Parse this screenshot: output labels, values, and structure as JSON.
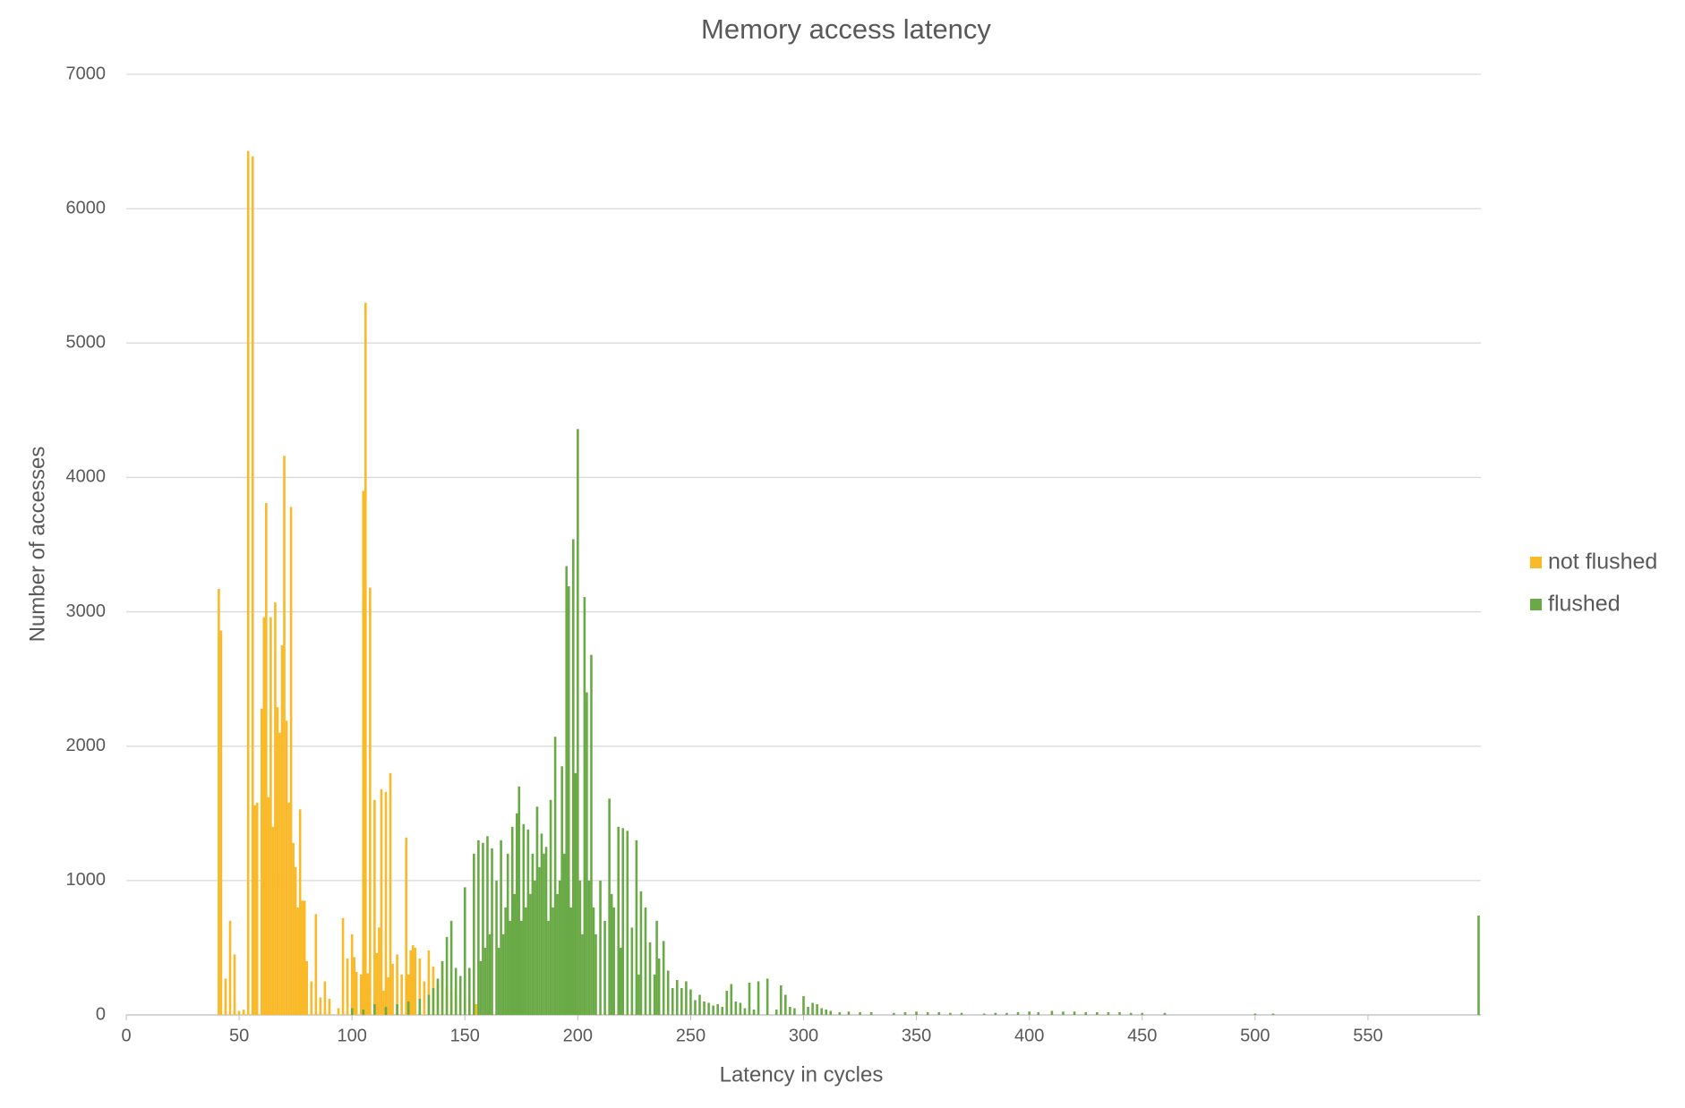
{
  "chart_data": {
    "type": "bar",
    "title": "Memory access latency",
    "x_label": "Latency in cycles",
    "y_label": "Number of accesses",
    "xlim": [
      0,
      600
    ],
    "xticks": [
      0,
      50,
      100,
      150,
      200,
      250,
      300,
      350,
      400,
      450,
      500,
      550
    ],
    "ylim": [
      0,
      7000
    ],
    "yticks": [
      0,
      1000,
      2000,
      3000,
      4000,
      5000,
      6000,
      7000
    ],
    "grid": true,
    "legend": "right",
    "series": [
      {
        "name": "not flushed",
        "color": "#f9b928",
        "x": [
          41,
          42,
          44,
          46,
          48,
          50,
          52,
          54,
          56,
          57,
          58,
          60,
          61,
          62,
          63,
          64,
          65,
          66,
          67,
          68,
          69,
          70,
          71,
          72,
          73,
          74,
          75,
          76,
          77,
          78,
          79,
          80,
          82,
          84,
          86,
          88,
          90,
          94,
          96,
          98,
          100,
          101,
          102,
          104,
          105,
          106,
          107,
          108,
          110,
          111,
          112,
          113,
          114,
          115,
          116,
          117,
          118,
          120,
          122,
          124,
          125,
          126,
          127,
          128,
          130,
          132,
          134,
          136,
          138,
          140,
          142,
          144,
          146,
          148,
          150,
          152,
          155,
          160
        ],
        "values": [
          3170,
          2860,
          270,
          700,
          450,
          30,
          40,
          6430,
          6390,
          1560,
          1580,
          2280,
          2960,
          3810,
          1620,
          2960,
          1400,
          3070,
          2290,
          2100,
          2750,
          4160,
          2190,
          1580,
          3780,
          1280,
          1100,
          800,
          1530,
          850,
          850,
          400,
          250,
          750,
          130,
          250,
          120,
          50,
          720,
          420,
          600,
          430,
          320,
          300,
          3900,
          5300,
          310,
          3180,
          1600,
          460,
          650,
          1680,
          180,
          1660,
          280,
          1800,
          380,
          450,
          300,
          1320,
          300,
          480,
          520,
          500,
          420,
          250,
          480,
          360,
          230,
          400,
          210,
          170,
          200,
          150,
          160,
          120,
          80,
          50
        ]
      },
      {
        "name": "flushed",
        "color": "#6aaa46",
        "x": [
          100,
          105,
          110,
          115,
          120,
          125,
          130,
          134,
          136,
          138,
          140,
          142,
          144,
          146,
          148,
          150,
          152,
          154,
          156,
          157,
          158,
          159,
          160,
          161,
          162,
          164,
          165,
          166,
          167,
          168,
          169,
          170,
          171,
          172,
          173,
          174,
          175,
          176,
          177,
          178,
          179,
          180,
          181,
          182,
          183,
          184,
          185,
          186,
          187,
          188,
          189,
          190,
          191,
          192,
          193,
          194,
          195,
          196,
          197,
          198,
          199,
          200,
          201,
          202,
          203,
          204,
          205,
          206,
          207,
          208,
          210,
          212,
          214,
          215,
          216,
          218,
          219,
          220,
          222,
          224,
          226,
          227,
          228,
          230,
          232,
          234,
          235,
          236,
          238,
          240,
          242,
          244,
          246,
          248,
          250,
          252,
          254,
          256,
          258,
          260,
          262,
          264,
          266,
          268,
          270,
          272,
          274,
          276,
          278,
          280,
          284,
          288,
          290,
          292,
          294,
          296,
          300,
          302,
          304,
          306,
          308,
          310,
          312,
          316,
          320,
          325,
          330,
          340,
          345,
          350,
          355,
          360,
          365,
          370,
          380,
          385,
          390,
          395,
          400,
          404,
          410,
          415,
          420,
          425,
          430,
          435,
          440,
          445,
          450,
          460,
          500,
          508,
          599
        ],
        "values": [
          50,
          40,
          80,
          60,
          80,
          100,
          120,
          150,
          200,
          270,
          400,
          580,
          700,
          350,
          290,
          950,
          350,
          1200,
          1300,
          400,
          1280,
          500,
          1330,
          600,
          1240,
          1000,
          500,
          1300,
          600,
          800,
          1200,
          700,
          1400,
          900,
          1500,
          1700,
          700,
          1420,
          800,
          1380,
          900,
          1200,
          1000,
          1550,
          1100,
          1350,
          1200,
          1250,
          700,
          1600,
          800,
          2070,
          900,
          1000,
          1850,
          1200,
          3340,
          3190,
          800,
          3540,
          1800,
          4360,
          1000,
          600,
          3110,
          2400,
          1000,
          2680,
          800,
          600,
          1000,
          700,
          1610,
          900,
          800,
          1400,
          500,
          1390,
          1370,
          650,
          1300,
          300,
          920,
          800,
          540,
          300,
          700,
          420,
          550,
          330,
          200,
          260,
          200,
          250,
          190,
          110,
          150,
          100,
          90,
          70,
          80,
          60,
          180,
          230,
          100,
          90,
          50,
          240,
          40,
          250,
          270,
          40,
          220,
          150,
          60,
          50,
          140,
          60,
          90,
          80,
          50,
          40,
          30,
          20,
          25,
          20,
          20,
          15,
          20,
          25,
          20,
          20,
          15,
          15,
          10,
          15,
          15,
          20,
          25,
          20,
          30,
          25,
          25,
          20,
          20,
          20,
          20,
          15,
          15,
          15,
          10,
          10,
          740
        ]
      }
    ]
  }
}
